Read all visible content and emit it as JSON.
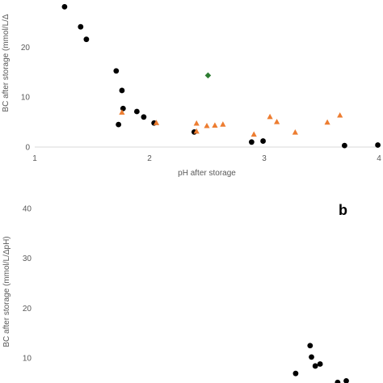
{
  "chart_data": [
    {
      "type": "scatter",
      "panel_label": "",
      "xlabel": "pH after storage",
      "ylabel": "BC after storage (mmol/L/Δ",
      "xlim": [
        1,
        4
      ],
      "ylim": [
        0,
        30
      ],
      "x_ticks": [
        "1",
        "2",
        "3",
        "4"
      ],
      "y_ticks": [
        "0",
        "10",
        "20"
      ],
      "grid": false,
      "series": [
        {
          "marker": "circle",
          "color": "#000000",
          "points": [
            [
              1.26,
              28.0
            ],
            [
              1.4,
              24.0
            ],
            [
              1.45,
              21.5
            ],
            [
              1.71,
              15.2
            ],
            [
              1.76,
              11.3
            ],
            [
              1.77,
              7.7
            ],
            [
              1.73,
              4.5
            ],
            [
              1.89,
              7.1
            ],
            [
              1.95,
              6.0
            ],
            [
              2.04,
              4.8
            ],
            [
              2.39,
              3.0
            ],
            [
              2.89,
              1.0
            ],
            [
              2.99,
              1.2
            ],
            [
              3.7,
              0.3
            ],
            [
              3.99,
              0.4
            ]
          ]
        },
        {
          "marker": "triangle",
          "color": "#ED7D31",
          "points": [
            [
              1.76,
              6.9
            ],
            [
              2.06,
              4.8
            ],
            [
              2.41,
              4.7
            ],
            [
              2.41,
              3.1
            ],
            [
              2.5,
              4.2
            ],
            [
              2.57,
              4.3
            ],
            [
              2.64,
              4.5
            ],
            [
              2.91,
              2.5
            ],
            [
              3.05,
              6.0
            ],
            [
              3.11,
              5.0
            ],
            [
              3.27,
              2.9
            ],
            [
              3.55,
              4.9
            ],
            [
              3.66,
              6.3
            ]
          ]
        },
        {
          "marker": "diamond",
          "color": "#2E7D32",
          "points": [
            [
              2.51,
              14.3
            ]
          ]
        }
      ]
    },
    {
      "type": "scatter",
      "panel_label": "b",
      "xlabel": "",
      "ylabel": "BC after storage (mmol/L/ΔpH)",
      "ylim": [
        0,
        40
      ],
      "y_ticks": [
        "40",
        "30",
        "20",
        "10"
      ],
      "grid": false,
      "series": [
        {
          "marker": "circle",
          "color": "#000000",
          "points": [
            [
              0.8,
              12.4
            ],
            [
              0.804,
              10.1
            ],
            [
              0.815,
              8.3
            ],
            [
              0.829,
              8.7
            ],
            [
              0.758,
              6.8
            ],
            [
              0.88,
              5.0
            ],
            [
              0.905,
              5.3
            ]
          ]
        }
      ]
    }
  ]
}
